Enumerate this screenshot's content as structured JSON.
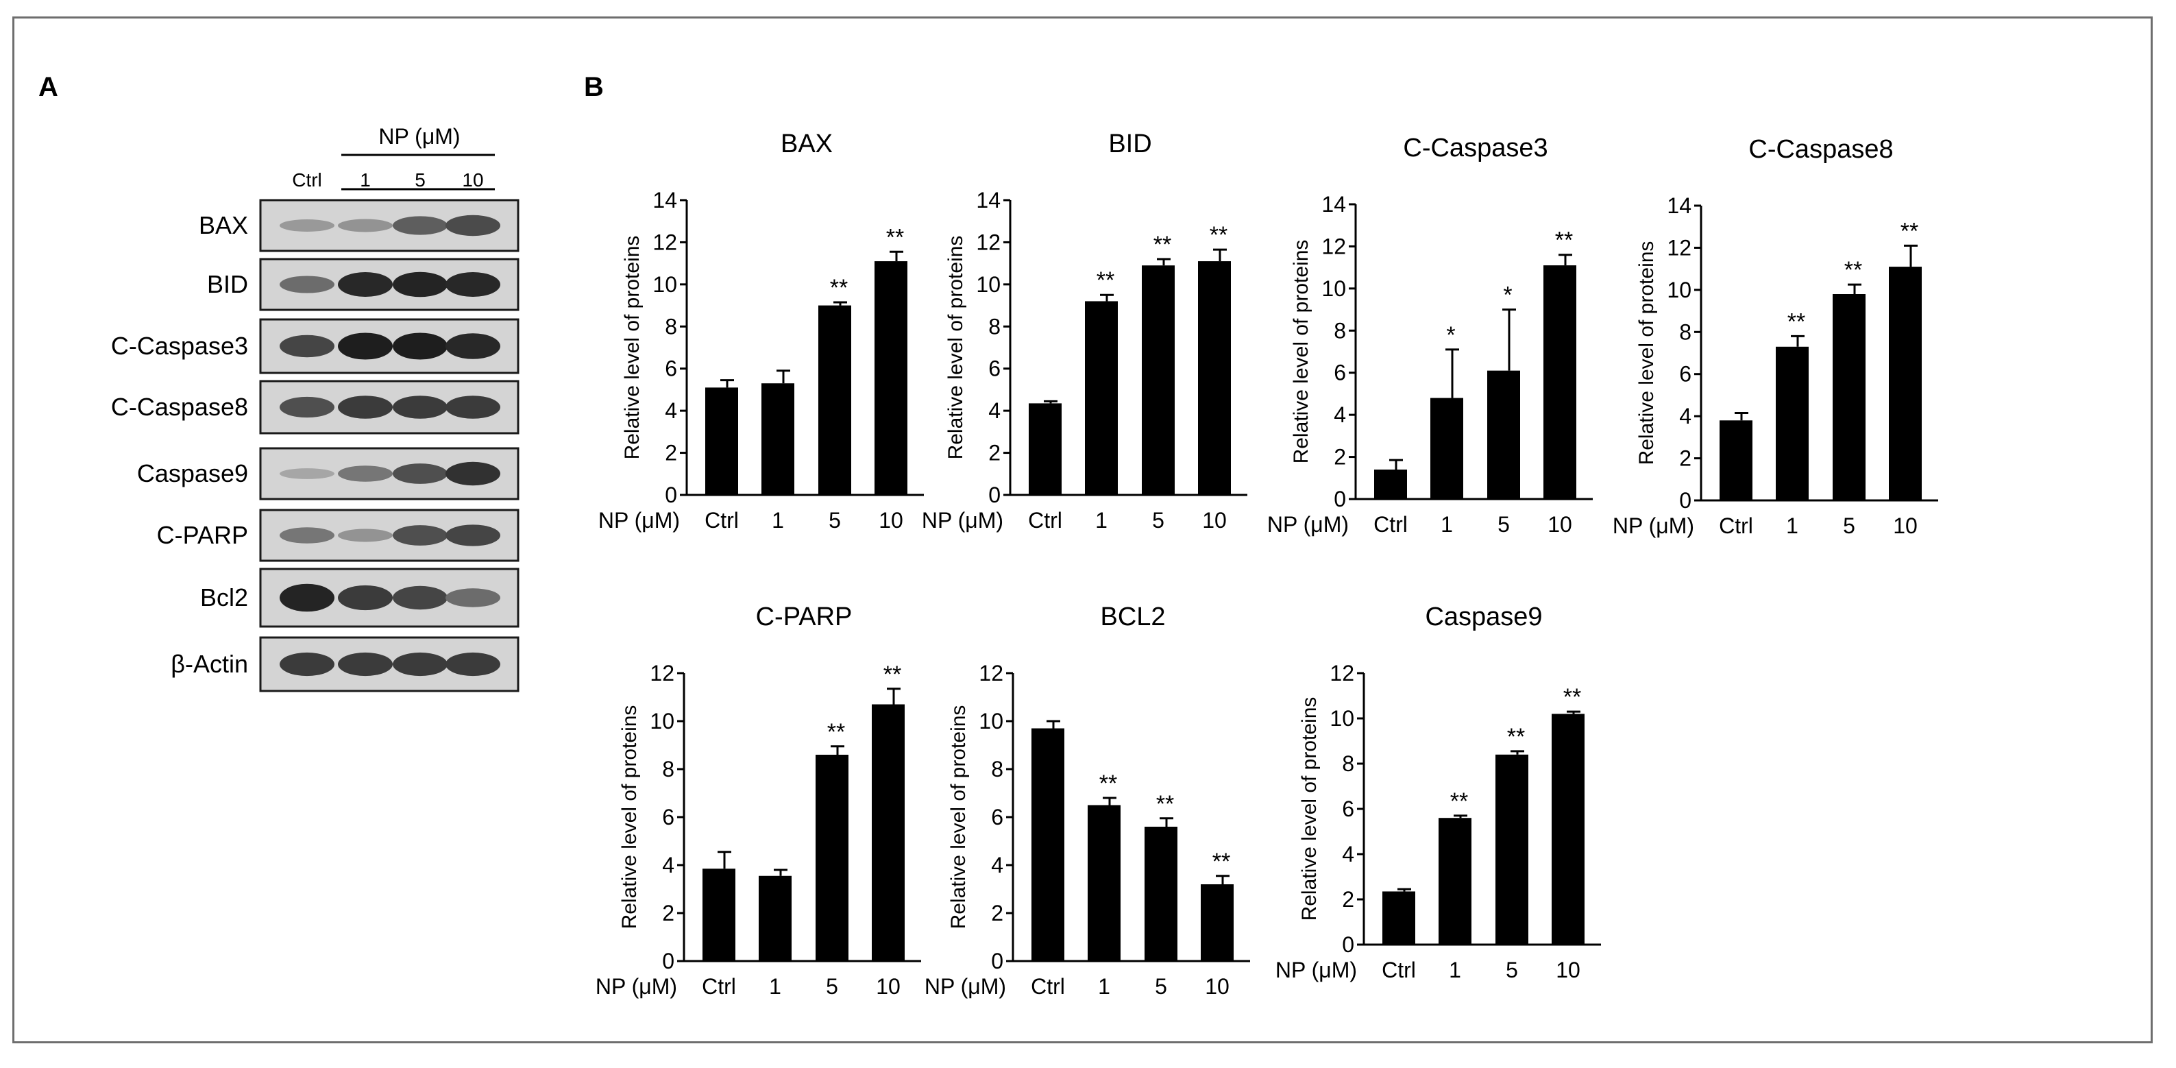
{
  "panels": {
    "a_label": "A",
    "b_label": "B"
  },
  "blot": {
    "treatment_label": "NP (μM)",
    "lane_labels": [
      "Ctrl",
      "1",
      "5",
      "10"
    ],
    "rows": [
      {
        "label": "BAX",
        "intensity": [
          0.32,
          0.35,
          0.62,
          0.72
        ]
      },
      {
        "label": "BID",
        "intensity": [
          0.55,
          0.9,
          0.92,
          0.9
        ]
      },
      {
        "label": "C-Caspase3",
        "intensity": [
          0.75,
          0.95,
          0.95,
          0.9
        ]
      },
      {
        "label": "C-Caspase8",
        "intensity": [
          0.7,
          0.8,
          0.8,
          0.8
        ]
      },
      {
        "label": "Caspase9",
        "intensity": [
          0.25,
          0.5,
          0.7,
          0.85
        ]
      },
      {
        "label": "C-PARP",
        "intensity": [
          0.5,
          0.35,
          0.7,
          0.75
        ]
      },
      {
        "label": "Bcl2",
        "intensity": [
          0.92,
          0.8,
          0.75,
          0.55
        ]
      },
      {
        "label": "β-Actin",
        "intensity": [
          0.8,
          0.8,
          0.8,
          0.8
        ]
      }
    ]
  },
  "chart_data": [
    {
      "type": "bar",
      "title": "BAX",
      "ylabel": "Relative level of proteins",
      "xlabel": "NP (μM)",
      "categories": [
        "Ctrl",
        "1",
        "5",
        "10"
      ],
      "values": [
        5.1,
        5.3,
        9.0,
        11.1
      ],
      "errors": [
        0.35,
        0.6,
        0.15,
        0.45
      ],
      "significance": [
        "",
        "",
        "**",
        "**"
      ],
      "ylim": [
        0,
        14
      ],
      "yticks": [
        0,
        2,
        4,
        6,
        8,
        10,
        12,
        14
      ]
    },
    {
      "type": "bar",
      "title": "BID",
      "ylabel": "Relative level of proteins",
      "xlabel": "NP (μM)",
      "categories": [
        "Ctrl",
        "1",
        "5",
        "10"
      ],
      "values": [
        4.35,
        9.2,
        10.9,
        11.1
      ],
      "errors": [
        0.1,
        0.3,
        0.3,
        0.55
      ],
      "significance": [
        "",
        "**",
        "**",
        "**"
      ],
      "ylim": [
        0,
        14
      ],
      "yticks": [
        0,
        2,
        4,
        6,
        8,
        10,
        12,
        14
      ]
    },
    {
      "type": "bar",
      "title": "C-Caspase3",
      "ylabel": "Relative level of proteins",
      "xlabel": "NP (μM)",
      "categories": [
        "Ctrl",
        "1",
        "5",
        "10"
      ],
      "values": [
        1.4,
        4.8,
        6.1,
        11.1
      ],
      "errors": [
        0.45,
        2.3,
        2.9,
        0.5
      ],
      "significance": [
        "",
        "*",
        "*",
        "**"
      ],
      "ylim": [
        0,
        14
      ],
      "yticks": [
        0,
        2,
        4,
        6,
        8,
        10,
        12,
        14
      ]
    },
    {
      "type": "bar",
      "title": "C-Caspase8",
      "ylabel": "Relative level of proteins",
      "xlabel": "NP (μM)",
      "categories": [
        "Ctrl",
        "1",
        "5",
        "10"
      ],
      "values": [
        3.8,
        7.3,
        9.8,
        11.1
      ],
      "errors": [
        0.35,
        0.5,
        0.45,
        1.0
      ],
      "significance": [
        "",
        "**",
        "**",
        "**"
      ],
      "ylim": [
        0,
        14
      ],
      "yticks": [
        0,
        2,
        4,
        6,
        8,
        10,
        12,
        14
      ]
    },
    {
      "type": "bar",
      "title": "C-PARP",
      "ylabel": "Relative level of proteins",
      "xlabel": "NP (μM)",
      "categories": [
        "Ctrl",
        "1",
        "5",
        "10"
      ],
      "values": [
        3.85,
        3.55,
        8.6,
        10.7
      ],
      "errors": [
        0.7,
        0.25,
        0.35,
        0.65
      ],
      "significance": [
        "",
        "",
        "**",
        "**"
      ],
      "ylim": [
        0,
        12
      ],
      "yticks": [
        0,
        2,
        4,
        6,
        8,
        10,
        12
      ]
    },
    {
      "type": "bar",
      "title": "BCL2",
      "ylabel": "Relative level of proteins",
      "xlabel": "NP (μM)",
      "categories": [
        "Ctrl",
        "1",
        "5",
        "10"
      ],
      "values": [
        9.7,
        6.5,
        5.6,
        3.2
      ],
      "errors": [
        0.3,
        0.3,
        0.35,
        0.35
      ],
      "significance": [
        "",
        "**",
        "**",
        "**"
      ],
      "ylim": [
        0,
        12
      ],
      "yticks": [
        0,
        2,
        4,
        6,
        8,
        10,
        12
      ]
    },
    {
      "type": "bar",
      "title": "Caspase9",
      "ylabel": "Relative level of proteins",
      "xlabel": "NP (μM)",
      "categories": [
        "Ctrl",
        "1",
        "5",
        "10"
      ],
      "values": [
        2.35,
        5.6,
        8.4,
        10.2
      ],
      "errors": [
        0.1,
        0.1,
        0.15,
        0.1
      ],
      "significance": [
        "",
        "**",
        "**",
        "**"
      ],
      "ylim": [
        0,
        12
      ],
      "yticks": [
        0,
        2,
        4,
        6,
        8,
        10,
        12
      ]
    }
  ]
}
